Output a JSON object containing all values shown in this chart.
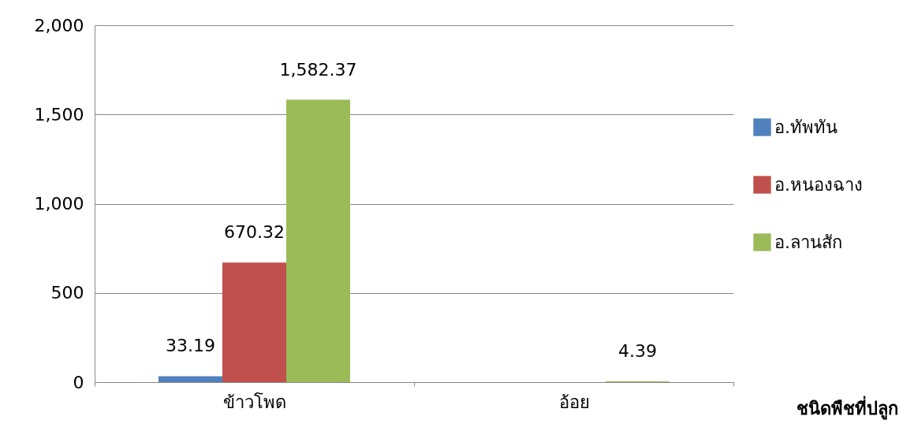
{
  "chart_data": {
    "type": "bar",
    "xlabel": "ชนิดพืชที่ปลูก",
    "categories": [
      "ข้าวโพด",
      "อ้อย"
    ],
    "series": [
      {
        "name": "อ.ทัพทัน",
        "color": "#4f81bd",
        "values": [
          33.19,
          null
        ],
        "value_labels": [
          "33.19",
          null
        ]
      },
      {
        "name": "อ.หนองฉาง",
        "color": "#c0504d",
        "values": [
          670.32,
          null
        ],
        "value_labels": [
          "670.32",
          null
        ]
      },
      {
        "name": "อ.ลานสัก",
        "color": "#9bbb59",
        "values": [
          1582.37,
          4.39
        ],
        "value_labels": [
          "1,582.37",
          "4.39"
        ]
      }
    ],
    "ylim": [
      0,
      2000
    ],
    "yticks": [
      0,
      500,
      {
        "value": 1000,
        "label": "1,000"
      },
      {
        "value": 1500,
        "label": "1,500"
      },
      {
        "value": 2000,
        "label": "2,000"
      }
    ],
    "grid": "y",
    "legend": "right"
  }
}
